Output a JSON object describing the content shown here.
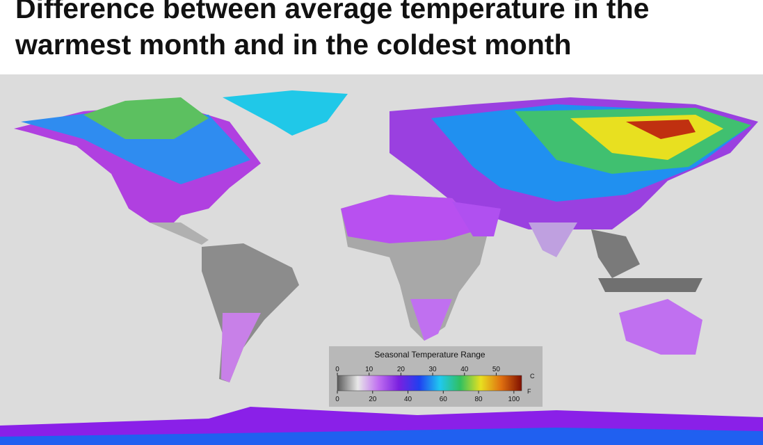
{
  "header": {
    "title": "Difference between average temperature in the warmest month and in the coldest month"
  },
  "legend": {
    "title": "Seasonal Temperature Range",
    "celsius": {
      "unit": "C",
      "ticks": [
        0,
        10,
        20,
        30,
        40,
        50
      ],
      "lim": [
        0,
        58
      ]
    },
    "fahrenheit": {
      "unit": "F",
      "ticks": [
        0,
        20,
        40,
        60,
        80,
        100
      ],
      "lim": [
        0,
        104.4
      ]
    },
    "colors": [
      "#5a5a5a",
      "#e8e8e8",
      "#c070f0",
      "#7a20e0",
      "#2040f0",
      "#20c8f0",
      "#30c060",
      "#e8e020",
      "#e07010",
      "#801000"
    ]
  }
}
